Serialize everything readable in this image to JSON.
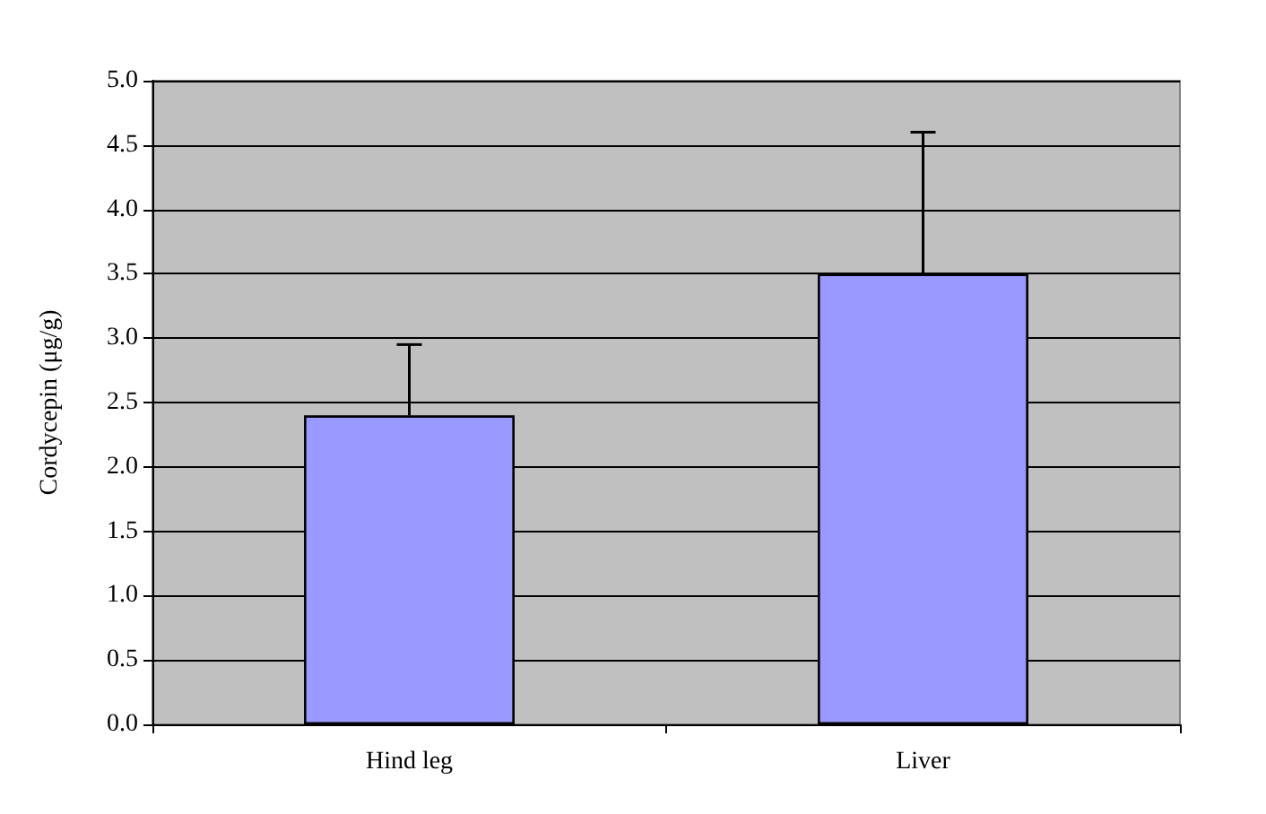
{
  "chart_data": {
    "type": "bar",
    "ylabel": "Cordycepin (μg/g)",
    "categories": [
      "Hind leg",
      "Liver"
    ],
    "values": [
      2.4,
      3.5
    ],
    "errors": [
      [
        2.4,
        2.95
      ],
      [
        3.5,
        4.6
      ]
    ],
    "color": "#9999ff",
    "ylim": [
      0,
      5
    ],
    "yticks": [
      {
        "value": 0,
        "label": "0.0"
      },
      {
        "value": 0.5,
        "label": "0.5"
      },
      {
        "value": 1,
        "label": "1.0"
      },
      {
        "value": 1.5,
        "label": "1.5"
      },
      {
        "value": 2,
        "label": "2.0"
      },
      {
        "value": 2.5,
        "label": "2.5"
      },
      {
        "value": 3,
        "label": "3.0"
      },
      {
        "value": 3.5,
        "label": "3.5"
      },
      {
        "value": 4,
        "label": "4.0"
      },
      {
        "value": 4.5,
        "label": "4.5"
      },
      {
        "value": 5,
        "label": "5.0"
      }
    ],
    "grid": "y"
  }
}
